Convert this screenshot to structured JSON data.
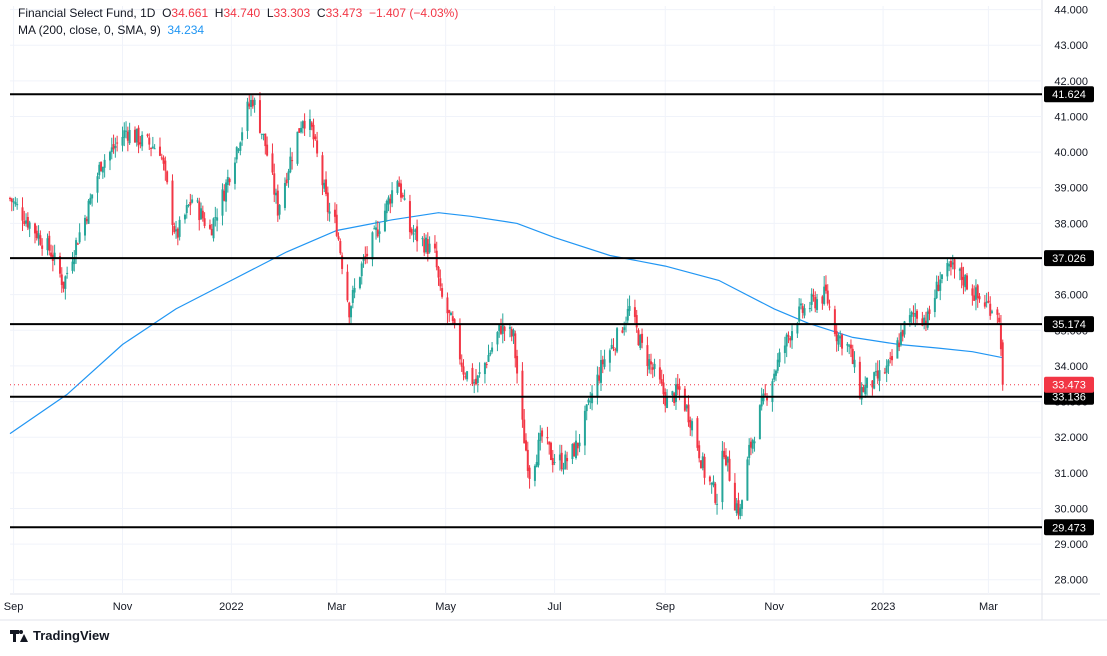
{
  "legend": {
    "line1_name": "Financial Select Fund, 1D",
    "o_label": "O",
    "o_value": "34.661",
    "h_label": "H",
    "h_value": "34.740",
    "l_label": "L",
    "l_value": "33.303",
    "c_label": "C",
    "c_value": "33.473",
    "change": "−1.407 (−4.03%)",
    "line2_name": "MA (200, close, 0, SMA, 9)",
    "ma_value": "34.234"
  },
  "brand": {
    "name": "TradingView",
    "logo_icon": "tradingview-logo-icon"
  },
  "colors": {
    "up": "#26a69a",
    "down": "#f23645",
    "ma": "#2196f3",
    "level_line": "#000000",
    "label_bg": "#000000",
    "last_label_bg": "#f23645",
    "grid": "#f0f3fa",
    "axis_text": "#131722"
  },
  "chart_data": {
    "type": "candlestick",
    "interval": "1D",
    "x_range": [
      "2021-08-30",
      "2023-03-31"
    ],
    "ylim": [
      27.6,
      44.1
    ],
    "grid": true,
    "y_ticks": [
      "28.000",
      "29.000",
      "30.000",
      "31.000",
      "32.000",
      "33.000",
      "34.000",
      "35.000",
      "36.000",
      "37.000",
      "38.000",
      "39.000",
      "40.000",
      "41.000",
      "42.000",
      "43.000",
      "44.000"
    ],
    "x_ticks": [
      {
        "label": "Sep",
        "date": "2021-09-01"
      },
      {
        "label": "Nov",
        "date": "2021-11-01"
      },
      {
        "label": "2022",
        "date": "2022-01-01"
      },
      {
        "label": "Mar",
        "date": "2022-03-01"
      },
      {
        "label": "May",
        "date": "2022-05-01"
      },
      {
        "label": "Jul",
        "date": "2022-07-01"
      },
      {
        "label": "Sep",
        "date": "2022-09-01"
      },
      {
        "label": "Nov",
        "date": "2022-11-01"
      },
      {
        "label": "2023",
        "date": "2023-01-01"
      },
      {
        "label": "Mar",
        "date": "2023-03-01"
      }
    ],
    "levels": [
      {
        "value": 41.624,
        "label": "41.624"
      },
      {
        "value": 37.026,
        "label": "37.026"
      },
      {
        "value": 35.174,
        "label": "35.174"
      },
      {
        "value": 33.136,
        "label": "33.136"
      },
      {
        "value": 29.473,
        "label": "29.473"
      }
    ],
    "last_price": {
      "value": 33.473,
      "label": "33.473"
    },
    "price_path": [
      [
        "2021-08-30",
        38.7
      ],
      [
        "2021-09-10",
        38.0
      ],
      [
        "2021-09-22",
        37.2
      ],
      [
        "2021-09-29",
        36.3
      ],
      [
        "2021-10-05",
        37.3
      ],
      [
        "2021-10-12",
        38.3
      ],
      [
        "2021-10-20",
        39.7
      ],
      [
        "2021-10-27",
        40.1
      ],
      [
        "2021-11-03",
        40.6
      ],
      [
        "2021-11-12",
        40.3
      ],
      [
        "2021-11-22",
        40.1
      ],
      [
        "2021-12-01",
        37.6
      ],
      [
        "2021-12-10",
        38.7
      ],
      [
        "2021-12-20",
        37.8
      ],
      [
        "2021-12-28",
        38.9
      ],
      [
        "2022-01-05",
        40.3
      ],
      [
        "2022-01-10",
        41.2
      ],
      [
        "2022-01-13",
        41.5
      ],
      [
        "2022-01-20",
        40.2
      ],
      [
        "2022-01-27",
        38.4
      ],
      [
        "2022-02-03",
        39.8
      ],
      [
        "2022-02-10",
        41.0
      ],
      [
        "2022-02-15",
        40.6
      ],
      [
        "2022-02-24",
        38.4
      ],
      [
        "2022-03-01",
        37.9
      ],
      [
        "2022-03-08",
        35.6
      ],
      [
        "2022-03-15",
        36.8
      ],
      [
        "2022-03-22",
        37.6
      ],
      [
        "2022-03-29",
        38.5
      ],
      [
        "2022-04-04",
        39.3
      ],
      [
        "2022-04-11",
        37.8
      ],
      [
        "2022-04-20",
        37.4
      ],
      [
        "2022-04-25",
        37.1
      ],
      [
        "2022-04-28",
        36.0
      ],
      [
        "2022-05-05",
        35.1
      ],
      [
        "2022-05-11",
        33.9
      ],
      [
        "2022-05-18",
        33.5
      ],
      [
        "2022-05-25",
        34.3
      ],
      [
        "2022-06-01",
        35.1
      ],
      [
        "2022-06-08",
        34.8
      ],
      [
        "2022-06-13",
        32.3
      ],
      [
        "2022-06-17",
        31.0
      ],
      [
        "2022-06-24",
        32.0
      ],
      [
        "2022-06-30",
        31.4
      ],
      [
        "2022-07-07",
        31.3
      ],
      [
        "2022-07-14",
        31.8
      ],
      [
        "2022-07-21",
        33.0
      ],
      [
        "2022-07-28",
        34.1
      ],
      [
        "2022-08-05",
        34.8
      ],
      [
        "2022-08-12",
        35.6
      ],
      [
        "2022-08-19",
        34.5
      ],
      [
        "2022-08-26",
        33.8
      ],
      [
        "2022-09-02",
        33.0
      ],
      [
        "2022-09-09",
        33.3
      ],
      [
        "2022-09-16",
        32.4
      ],
      [
        "2022-09-23",
        31.0
      ],
      [
        "2022-09-30",
        30.3
      ],
      [
        "2022-10-04",
        31.7
      ],
      [
        "2022-10-10",
        30.2
      ],
      [
        "2022-10-13",
        29.9
      ],
      [
        "2022-10-18",
        31.6
      ],
      [
        "2022-10-24",
        32.7
      ],
      [
        "2022-10-31",
        33.7
      ],
      [
        "2022-11-07",
        34.6
      ],
      [
        "2022-11-14",
        35.4
      ],
      [
        "2022-11-23",
        35.8
      ],
      [
        "2022-11-30",
        36.0
      ],
      [
        "2022-12-06",
        34.9
      ],
      [
        "2022-12-13",
        34.5
      ],
      [
        "2022-12-19",
        33.3
      ],
      [
        "2022-12-28",
        33.6
      ],
      [
        "2023-01-05",
        34.0
      ],
      [
        "2023-01-12",
        35.0
      ],
      [
        "2023-01-19",
        35.5
      ],
      [
        "2023-01-26",
        35.3
      ],
      [
        "2023-02-02",
        36.5
      ],
      [
        "2023-02-09",
        36.7
      ],
      [
        "2023-02-16",
        36.4
      ],
      [
        "2023-02-23",
        35.9
      ],
      [
        "2023-03-01",
        35.7
      ],
      [
        "2023-03-06",
        35.6
      ],
      [
        "2023-03-08",
        34.7
      ],
      [
        "2023-03-09",
        33.47
      ]
    ],
    "ma200": [
      [
        "2021-08-30",
        32.1
      ],
      [
        "2021-10-01",
        33.2
      ],
      [
        "2021-11-01",
        34.6
      ],
      [
        "2021-12-01",
        35.6
      ],
      [
        "2022-01-01",
        36.4
      ],
      [
        "2022-02-01",
        37.2
      ],
      [
        "2022-03-01",
        37.8
      ],
      [
        "2022-04-01",
        38.1
      ],
      [
        "2022-04-27",
        38.3
      ],
      [
        "2022-05-15",
        38.2
      ],
      [
        "2022-06-10",
        38.0
      ],
      [
        "2022-07-01",
        37.6
      ],
      [
        "2022-08-01",
        37.1
      ],
      [
        "2022-09-01",
        36.8
      ],
      [
        "2022-10-01",
        36.4
      ],
      [
        "2022-11-01",
        35.6
      ],
      [
        "2022-11-20",
        35.2
      ],
      [
        "2022-12-15",
        34.8
      ],
      [
        "2023-01-10",
        34.6
      ],
      [
        "2023-02-01",
        34.5
      ],
      [
        "2023-02-20",
        34.4
      ],
      [
        "2023-03-09",
        34.23
      ]
    ]
  }
}
